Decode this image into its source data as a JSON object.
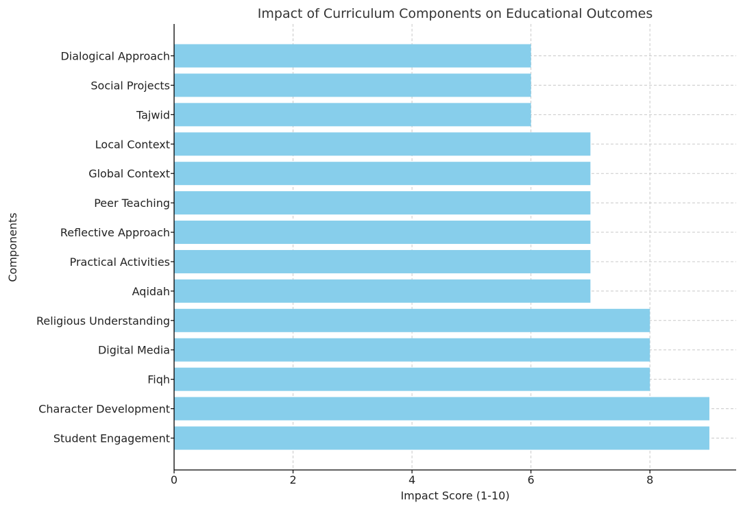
{
  "chart_data": {
    "type": "bar",
    "orientation": "horizontal",
    "title": "Impact of Curriculum Components on Educational Outcomes",
    "xlabel": "Impact Score (1-10)",
    "ylabel": "Components",
    "categories": [
      "Student Engagement",
      "Character Development",
      "Fiqh",
      "Digital Media",
      "Religious Understanding",
      "Aqidah",
      "Practical Activities",
      "Reflective Approach",
      "Peer Teaching",
      "Global Context",
      "Local Context",
      "Tajwid",
      "Social Projects",
      "Dialogical Approach"
    ],
    "values": [
      9,
      9,
      8,
      8,
      8,
      7,
      7,
      7,
      7,
      7,
      7,
      6,
      6,
      6
    ],
    "xlim": [
      0,
      9.45
    ],
    "xticks": [
      "0",
      "2",
      "4",
      "6",
      "8"
    ],
    "grid": true,
    "bar_color": "#87CEEB"
  }
}
